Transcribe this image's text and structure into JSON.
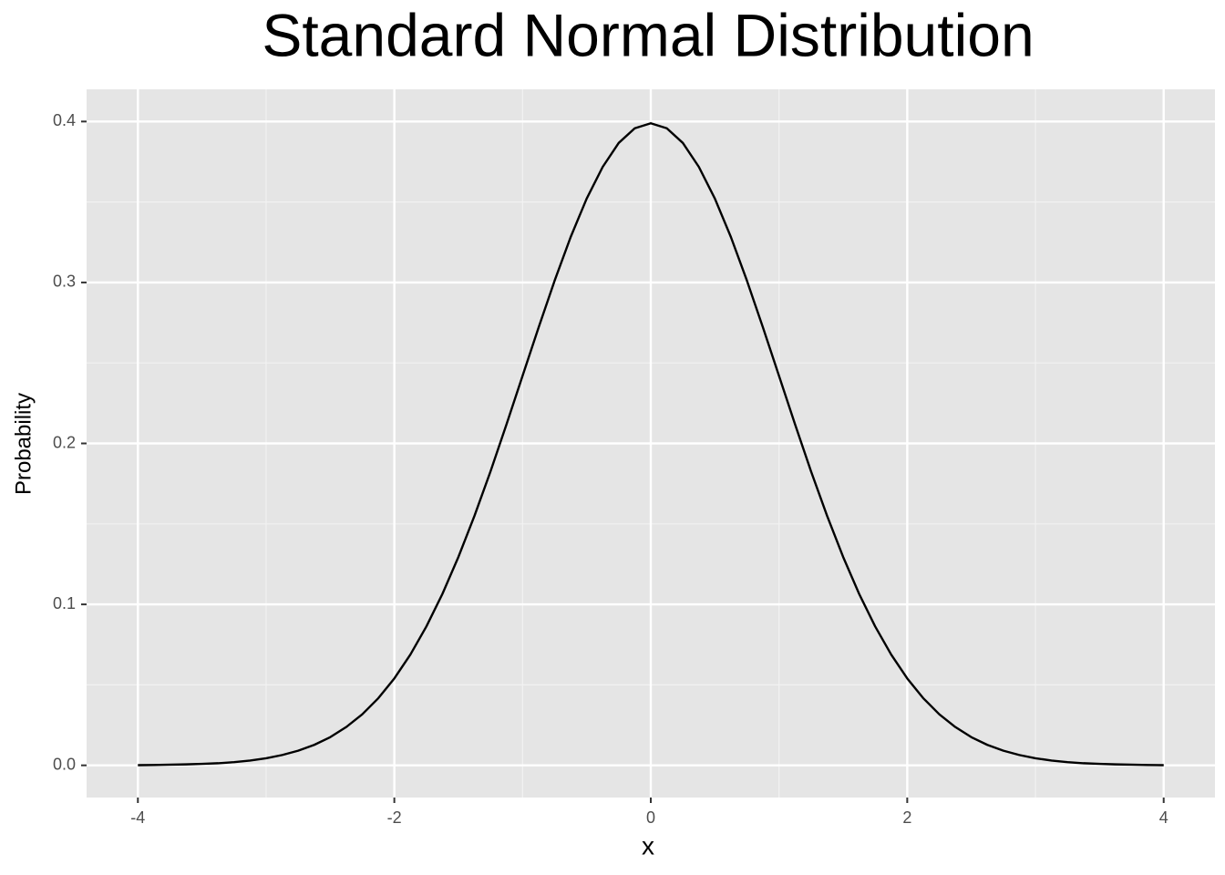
{
  "chart_data": {
    "type": "line",
    "title": "Standard Normal Distribution",
    "x_label": "x",
    "y_label": "Probability",
    "x": [
      -4,
      -3.875,
      -3.75,
      -3.625,
      -3.5,
      -3.375,
      -3.25,
      -3.125,
      -3,
      -2.875,
      -2.75,
      -2.625,
      -2.5,
      -2.375,
      -2.25,
      -2.125,
      -2,
      -1.875,
      -1.75,
      -1.625,
      -1.5,
      -1.375,
      -1.25,
      -1.125,
      -1,
      -0.875,
      -0.75,
      -0.625,
      -0.5,
      -0.375,
      -0.25,
      -0.125,
      0,
      0.125,
      0.25,
      0.375,
      0.5,
      0.625,
      0.75,
      0.875,
      1,
      1.125,
      1.25,
      1.375,
      1.5,
      1.625,
      1.75,
      1.875,
      2,
      2.125,
      2.25,
      2.375,
      2.5,
      2.625,
      2.75,
      2.875,
      3,
      3.125,
      3.25,
      3.375,
      3.5,
      3.625,
      3.75,
      3.875,
      4
    ],
    "values": [
      0.0001,
      0.0002,
      0.0004,
      0.0006,
      0.0009,
      0.0013,
      0.002,
      0.003,
      0.0044,
      0.0064,
      0.0091,
      0.0127,
      0.0175,
      0.0238,
      0.0317,
      0.0417,
      0.054,
      0.0688,
      0.0863,
      0.1065,
      0.1295,
      0.155,
      0.1826,
      0.2119,
      0.242,
      0.272,
      0.3011,
      0.3282,
      0.3521,
      0.3718,
      0.3867,
      0.3958,
      0.3989,
      0.3958,
      0.3867,
      0.3718,
      0.3521,
      0.3282,
      0.3011,
      0.272,
      0.242,
      0.2119,
      0.1826,
      0.155,
      0.1295,
      0.1065,
      0.0863,
      0.0688,
      0.054,
      0.0417,
      0.0317,
      0.0238,
      0.0175,
      0.0127,
      0.0091,
      0.0064,
      0.0044,
      0.003,
      0.002,
      0.0013,
      0.0009,
      0.0006,
      0.0004,
      0.0002,
      0.0001
    ],
    "color": "#000000",
    "xlim": [
      -4.4,
      4.4
    ],
    "xticks": [
      -4,
      -2,
      0,
      2,
      4
    ],
    "x_minor_ticks": [
      -3,
      -1,
      1,
      3
    ],
    "ylim": [
      -0.02,
      0.42
    ],
    "yticks": [
      {
        "value": 0,
        "label": "0.0"
      },
      0.1,
      0.2,
      0.3,
      0.4
    ],
    "y_minor_ticks": [
      0.05,
      0.15,
      0.25,
      0.35
    ],
    "grid": true
  }
}
